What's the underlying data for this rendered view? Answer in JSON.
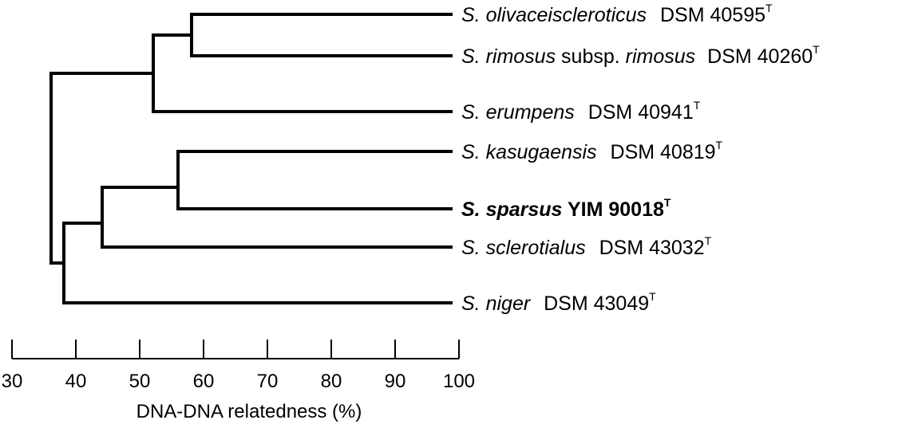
{
  "axis": {
    "title": "DNA-DNA relatedness (%)",
    "ticks": [
      "30",
      "40",
      "50",
      "60",
      "70",
      "80",
      "90",
      "100"
    ]
  },
  "taxa": [
    {
      "genus": "S.",
      "epithet": "olivaceiscleroticus",
      "strain": "DSM 40595",
      "sup": "T",
      "bold": false
    },
    {
      "genus": "S.",
      "epithet": "rimosus",
      "subsp_word": "subsp.",
      "subsp_name": "rimosus",
      "strain": "DSM 40260",
      "sup": "T",
      "bold": false
    },
    {
      "genus": "S.",
      "epithet": "erumpens",
      "strain": "DSM 40941",
      "sup": "T",
      "bold": false
    },
    {
      "genus": "S.",
      "epithet": "kasugaensis",
      "strain": "DSM 40819",
      "sup": "T",
      "bold": false
    },
    {
      "genus": "S.",
      "epithet": "sparsus",
      "strain": "YIM 90018",
      "sup": "T",
      "bold": true
    },
    {
      "genus": "S.",
      "epithet": "sclerotialus",
      "strain": "DSM 43032",
      "sup": "T",
      "bold": false
    },
    {
      "genus": "S.",
      "epithet": "niger",
      "strain": "DSM 43049",
      "sup": "T",
      "bold": false
    }
  ],
  "chart_data": {
    "type": "dendrogram",
    "xlabel": "DNA-DNA relatedness (%)",
    "xlim": [
      30,
      100
    ],
    "leaves": [
      "S. olivaceiscleroticus DSM 40595T",
      "S. rimosus subsp. rimosus DSM 40260T",
      "S. erumpens DSM 40941T",
      "S. kasugaensis DSM 40819T",
      "S. sparsus YIM 90018T",
      "S. sclerotialus DSM 43032T",
      "S. niger DSM 43049T"
    ],
    "merges": [
      {
        "members": [
          "S. olivaceiscleroticus DSM 40595T",
          "S. rimosus subsp. rimosus DSM 40260T"
        ],
        "relatedness": 58
      },
      {
        "members": [
          "S. olivaceiscleroticus DSM 40595T",
          "S. rimosus subsp. rimosus DSM 40260T",
          "S. erumpens DSM 40941T"
        ],
        "relatedness": 52
      },
      {
        "members": [
          "S. kasugaensis DSM 40819T",
          "S. sparsus YIM 90018T"
        ],
        "relatedness": 56
      },
      {
        "members": [
          "S. kasugaensis DSM 40819T",
          "S. sparsus YIM 90018T",
          "S. sclerotialus DSM 43032T"
        ],
        "relatedness": 44
      },
      {
        "members": [
          "S. kasugaensis DSM 40819T",
          "S. sparsus YIM 90018T",
          "S. sclerotialus DSM 43032T",
          "S. niger DSM 43049T"
        ],
        "relatedness": 38
      },
      {
        "members": [
          "all"
        ],
        "relatedness": 36
      }
    ]
  }
}
